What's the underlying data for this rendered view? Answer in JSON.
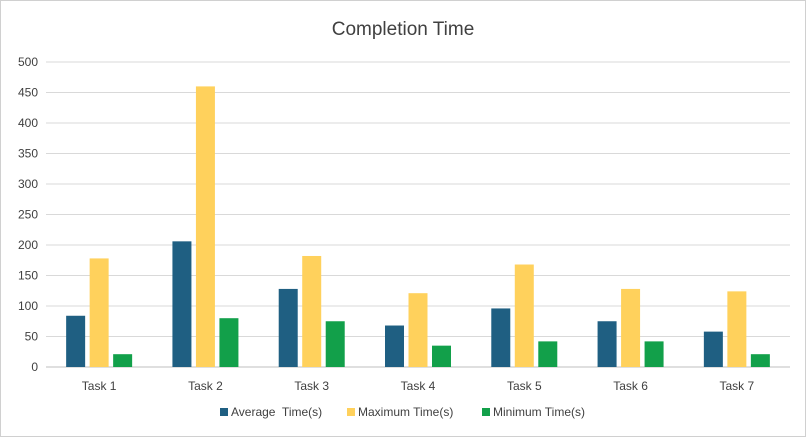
{
  "chart_data": {
    "type": "bar",
    "title": "Completion Time",
    "xlabel": "",
    "ylabel": "",
    "categories": [
      "Task 1",
      "Task 2",
      "Task 3",
      "Task 4",
      "Task 5",
      "Task 6",
      "Task 7"
    ],
    "series": [
      {
        "name": "Average  Time(s)",
        "color": "#1f5f82",
        "values": [
          84,
          206,
          128,
          68,
          96,
          75,
          58
        ]
      },
      {
        "name": "Maximum Time(s)",
        "color": "#ffd15c",
        "values": [
          178,
          460,
          182,
          121,
          168,
          128,
          124
        ]
      },
      {
        "name": "Minimum Time(s)",
        "color": "#12a04a",
        "values": [
          21,
          80,
          75,
          35,
          42,
          42,
          21
        ]
      }
    ],
    "ylim": [
      0,
      500
    ],
    "yticks": [
      "0",
      "50",
      "100",
      "150",
      "200",
      "250",
      "300",
      "350",
      "400",
      "450",
      "500"
    ],
    "grid": true,
    "legend_position": "bottom"
  }
}
